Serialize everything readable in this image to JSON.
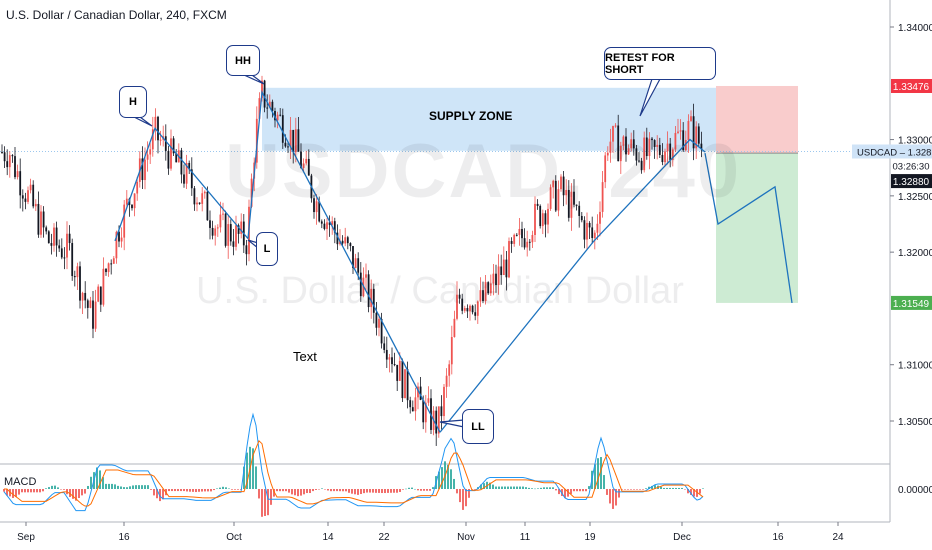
{
  "header": {
    "title": "U.S. Dollar / Canadian Dollar, 240, FXCM"
  },
  "watermark": {
    "symbol": "USDCAD, 240",
    "name": "U.S. Dollar / Canadian Dollar"
  },
  "annotations": {
    "h": "H",
    "l": "L",
    "hh": "HH",
    "ll": "LL",
    "retest": "RETEST FOR SHORT",
    "supply_zone": "SUPPLY ZONE",
    "text": "Text"
  },
  "price_scale": {
    "ticks": [
      "1.34000",
      "1.33000",
      "1.32500",
      "1.32000",
      "1.31000",
      "1.30500"
    ],
    "tags": {
      "stop": "1.33476",
      "symbol": "USDCAD",
      "last": "1.32894",
      "countdown": "03:26:30",
      "entry": "1.32880",
      "target": "1.31549"
    }
  },
  "time_axis": {
    "labels": [
      "Sep",
      "16",
      "Oct",
      "14",
      "22",
      "Nov",
      "11",
      "19",
      "Dec",
      "16",
      "24"
    ]
  },
  "macd": {
    "label": "MACD",
    "zero_label": "0.00000"
  },
  "colors": {
    "up": "#ef5350",
    "down": "#131722",
    "line": "#1e73be",
    "zone": "#cfe5f8",
    "stop_zone": "#f9cccc",
    "target_zone": "#cdebd3",
    "macd_line": "#2196f3",
    "signal_line": "#ff6d00"
  },
  "chart_data": {
    "type": "candlestick",
    "symbol": "USDCAD",
    "timeframe": "240",
    "x_labels": [
      "Sep",
      "16",
      "Oct",
      "14",
      "22",
      "Nov",
      "11",
      "19",
      "Dec",
      "16",
      "24"
    ],
    "ylim": [
      1.3015,
      1.3435
    ],
    "path_close": [
      [
        "Sep",
        1.3285
      ],
      [
        "6",
        1.321
      ],
      [
        "9",
        1.32
      ],
      [
        "12",
        1.314
      ],
      [
        "16",
        1.3225
      ],
      [
        "18",
        1.3305
      ],
      [
        "23",
        1.3262
      ],
      [
        "27",
        1.3222
      ],
      [
        "30",
        1.321
      ],
      [
        "Oct",
        1.33
      ],
      [
        "3",
        1.334
      ],
      [
        "8",
        1.33
      ],
      [
        "11",
        1.3245
      ],
      [
        "14",
        1.3225
      ],
      [
        "17",
        1.3195
      ],
      [
        "21",
        1.314
      ],
      [
        "24",
        1.308
      ],
      [
        "29",
        1.3045
      ],
      [
        "30",
        1.309
      ],
      [
        "Nov",
        1.316
      ],
      [
        "6",
        1.3155
      ],
      [
        "11",
        1.3225
      ],
      [
        "14",
        1.3255
      ],
      [
        "19",
        1.321
      ],
      [
        "22",
        1.33
      ],
      [
        "26",
        1.3285
      ],
      [
        "Dec",
        1.331
      ],
      [
        "3",
        1.3289
      ]
    ],
    "supply_zone": [
      1.329,
      1.3346
    ],
    "trade_levels": {
      "stop": 1.33476,
      "entry": 1.3288,
      "target": 1.31549,
      "last": 1.32894
    },
    "projection": [
      1.3288,
      1.3225,
      1.3258,
      1.31549
    ],
    "pivots": {
      "H": 1.331,
      "L": 1.321,
      "HH": 1.3342,
      "LL": 1.3045
    }
  }
}
